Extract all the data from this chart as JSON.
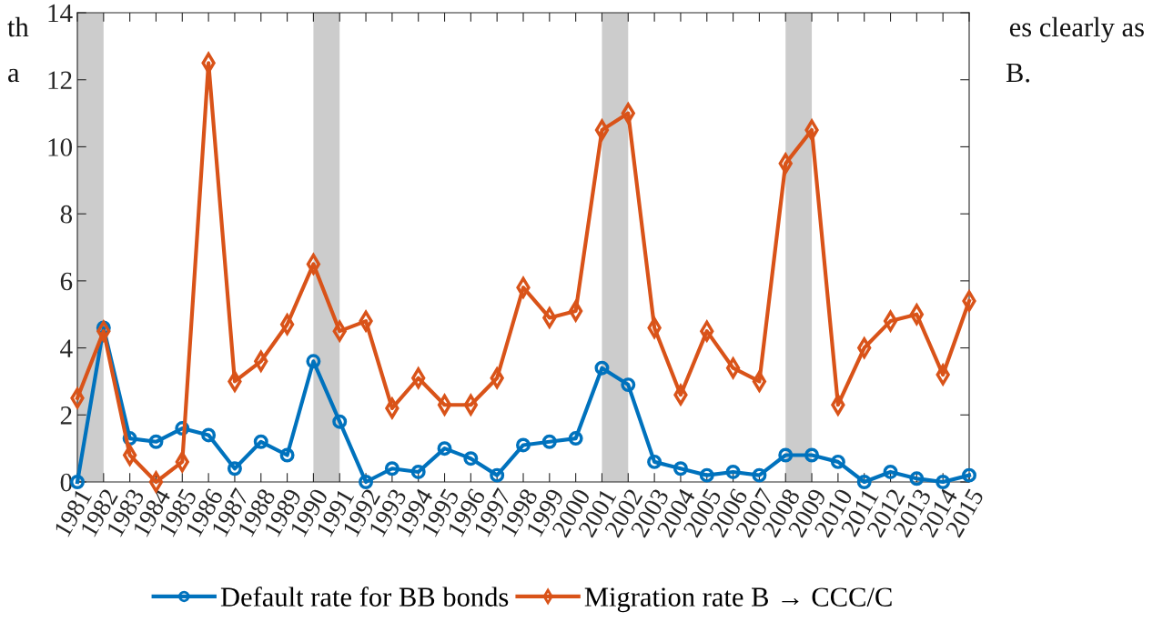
{
  "chart_data": {
    "type": "line",
    "x": [
      1981,
      1982,
      1983,
      1984,
      1985,
      1986,
      1987,
      1988,
      1989,
      1990,
      1991,
      1992,
      1993,
      1994,
      1995,
      1996,
      1997,
      1998,
      1999,
      2000,
      2001,
      2002,
      2003,
      2004,
      2005,
      2006,
      2007,
      2008,
      2009,
      2010,
      2011,
      2012,
      2013,
      2014,
      2015
    ],
    "series": [
      {
        "name": "Default rate for BB bonds",
        "color": "#0072bd",
        "marker": "circle",
        "values": [
          0,
          4.6,
          1.3,
          1.2,
          1.6,
          1.4,
          0.4,
          1.2,
          0.8,
          3.6,
          1.8,
          0,
          0.4,
          0.3,
          1.0,
          0.7,
          0.2,
          1.1,
          1.2,
          1.3,
          3.4,
          2.9,
          0.6,
          0.4,
          0.2,
          0.3,
          0.2,
          0.8,
          0.8,
          0.6,
          0,
          0.3,
          0.1,
          0,
          0.2
        ]
      },
      {
        "name": "Migration rate B → CCC/C",
        "color": "#d95319",
        "marker": "diamond",
        "values": [
          2.5,
          4.5,
          0.8,
          0,
          0.6,
          12.5,
          3.0,
          3.6,
          4.7,
          6.5,
          4.5,
          4.8,
          2.2,
          3.1,
          2.3,
          2.3,
          3.1,
          5.8,
          4.9,
          5.1,
          10.5,
          11.0,
          4.6,
          2.6,
          4.5,
          3.4,
          3.0,
          9.5,
          10.5,
          2.3,
          4.0,
          4.8,
          5.0,
          3.2,
          5.4
        ]
      }
    ],
    "xlim": [
      1981,
      2015
    ],
    "xticks": [
      1981,
      1982,
      1983,
      1984,
      1985,
      1986,
      1987,
      1988,
      1989,
      1990,
      1991,
      1992,
      1993,
      1994,
      1995,
      1996,
      1997,
      1998,
      1999,
      2000,
      2001,
      2002,
      2003,
      2004,
      2005,
      2006,
      2007,
      2008,
      2009,
      2010,
      2011,
      2012,
      2013,
      2014,
      2015
    ],
    "ylim": [
      0,
      14
    ],
    "yticks": [
      0,
      2,
      4,
      6,
      8,
      10,
      12,
      14
    ],
    "bands": [
      {
        "axis": "x",
        "from": 1981,
        "to": 1982,
        "color": "#cccccc"
      },
      {
        "axis": "x",
        "from": 1990,
        "to": 1991,
        "color": "#cccccc"
      },
      {
        "axis": "x",
        "from": 2001,
        "to": 2002,
        "color": "#cccccc"
      },
      {
        "axis": "x",
        "from": 2008,
        "to": 2009,
        "color": "#cccccc"
      }
    ],
    "grid": false,
    "legend": "bottom",
    "line_style": "solid",
    "annotations": [
      "th",
      "a",
      "es clearly as",
      "B."
    ]
  }
}
